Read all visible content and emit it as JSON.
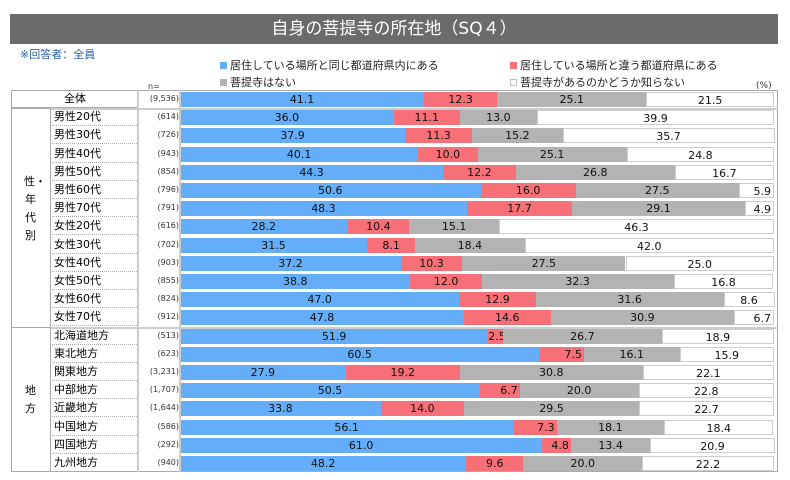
{
  "title": "自身の菩提寺の所在地（SQ４）",
  "respondents": "※回答者：全員",
  "n_label": "n=",
  "unit": "(%)",
  "colors": {
    "same_pref": "#64aef9",
    "other_pref": "#f87077",
    "none": "#b3b3b3",
    "unknown": "#ffffff"
  },
  "chart_data": {
    "type": "bar",
    "orientation": "horizontal",
    "stacked": true,
    "xlim": [
      0,
      100
    ],
    "title": "自身の菩提寺の所在地（SQ４）",
    "legend": [
      "居住している場所と同じ都道府県内にある",
      "居住している場所と違う都道府県にある",
      "菩提寺はない",
      "菩提寺があるのかどうか知らない"
    ],
    "groups": [
      {
        "label": "",
        "rows": [
          0
        ]
      },
      {
        "label": "性・年代別",
        "chars": [
          "性",
          "・",
          "年",
          "代",
          "別"
        ],
        "rows": [
          1,
          2,
          3,
          4,
          5,
          6,
          7,
          8,
          9,
          10,
          11,
          12
        ]
      },
      {
        "label": "地方",
        "chars": [
          "地",
          "方"
        ],
        "rows": [
          13,
          14,
          15,
          16,
          17,
          18,
          19,
          20
        ]
      }
    ],
    "categories": [
      "全体",
      "男性20代",
      "男性30代",
      "男性40代",
      "男性50代",
      "男性60代",
      "男性70代",
      "女性20代",
      "女性30代",
      "女性40代",
      "女性50代",
      "女性60代",
      "女性70代",
      "北海道地方",
      "東北地方",
      "関東地方",
      "中部地方",
      "近畿地方",
      "中国地方",
      "四国地方",
      "九州地方"
    ],
    "n": [
      "(9,536)",
      "(614)",
      "(726)",
      "(943)",
      "(854)",
      "(796)",
      "(791)",
      "(616)",
      "(702)",
      "(903)",
      "(855)",
      "(824)",
      "(912)",
      "(513)",
      "(623)",
      "(3,231)",
      "(1,707)",
      "(1,644)",
      "(586)",
      "(292)",
      "(940)"
    ],
    "series": [
      {
        "name": "居住している場所と同じ都道府県内にある",
        "values": [
          41.1,
          36.0,
          37.9,
          40.1,
          44.3,
          50.6,
          48.3,
          28.2,
          31.5,
          37.2,
          38.8,
          47.0,
          47.8,
          51.9,
          60.5,
          27.9,
          50.5,
          33.8,
          56.1,
          61.0,
          48.2
        ]
      },
      {
        "name": "居住している場所と違う都道府県にある",
        "values": [
          12.3,
          11.1,
          11.3,
          10.0,
          12.2,
          16.0,
          17.7,
          10.4,
          8.1,
          10.3,
          12.0,
          12.9,
          14.6,
          2.5,
          7.5,
          19.2,
          6.7,
          14.0,
          7.3,
          4.8,
          9.6
        ]
      },
      {
        "name": "菩提寺はない",
        "values": [
          25.1,
          13.0,
          15.2,
          25.1,
          26.8,
          27.5,
          29.1,
          15.1,
          18.4,
          27.5,
          32.3,
          31.6,
          30.9,
          26.7,
          16.1,
          30.8,
          20.0,
          29.5,
          18.1,
          13.4,
          20.0
        ]
      },
      {
        "name": "菩提寺があるのかどうか知らない",
        "values": [
          21.5,
          39.9,
          35.7,
          24.8,
          16.7,
          5.9,
          4.9,
          46.3,
          42.0,
          25.0,
          16.8,
          8.6,
          6.7,
          18.9,
          15.9,
          22.1,
          22.8,
          22.7,
          18.4,
          20.9,
          22.2
        ]
      }
    ]
  }
}
